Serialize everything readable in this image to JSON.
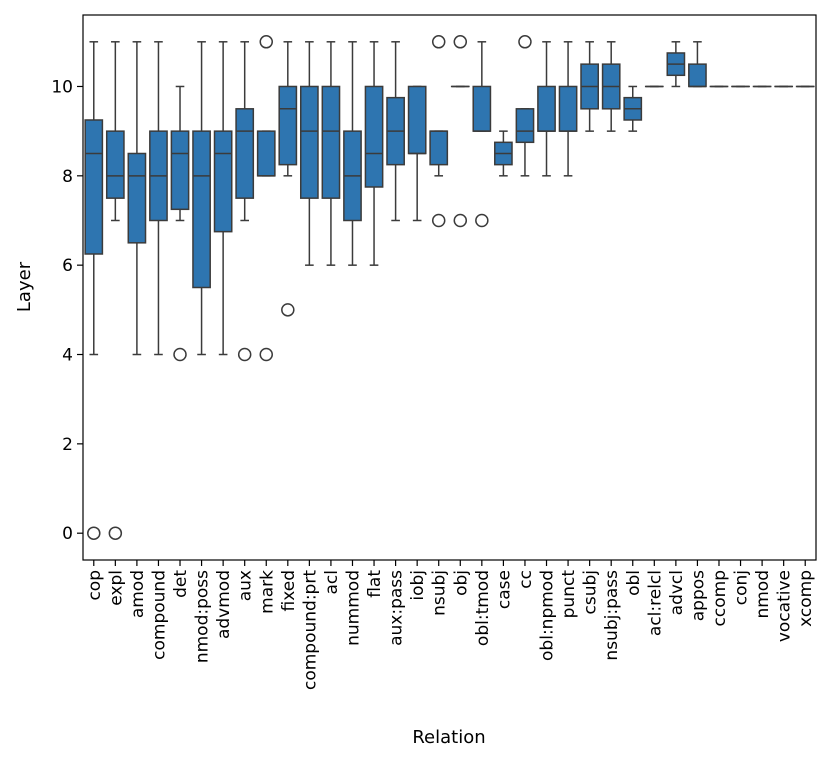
{
  "chart_data": {
    "type": "boxplot",
    "title": "",
    "xlabel": "Relation",
    "ylabel": "Layer",
    "ylim": [
      -0.6,
      11.6
    ],
    "yticks": [
      0,
      2,
      4,
      6,
      8,
      10
    ],
    "box_color": "#2e75b0",
    "line_color": "#3b3b3b",
    "categories": [
      {
        "label": "cop",
        "whisker_low": 4,
        "q1": 6.25,
        "median": 8.5,
        "q3": 9.25,
        "whisker_high": 11,
        "outliers": [
          0
        ]
      },
      {
        "label": "expl",
        "whisker_low": 7,
        "q1": 7.5,
        "median": 8,
        "q3": 9,
        "whisker_high": 11,
        "outliers": [
          0
        ]
      },
      {
        "label": "amod",
        "whisker_low": 4,
        "q1": 6.5,
        "median": 8,
        "q3": 8.5,
        "whisker_high": 11,
        "outliers": []
      },
      {
        "label": "compound",
        "whisker_low": 4,
        "q1": 7,
        "median": 8,
        "q3": 9,
        "whisker_high": 11,
        "outliers": []
      },
      {
        "label": "det",
        "whisker_low": 7,
        "q1": 7.25,
        "median": 8.5,
        "q3": 9,
        "whisker_high": 10,
        "outliers": [
          4
        ]
      },
      {
        "label": "nmod:poss",
        "whisker_low": 4,
        "q1": 5.5,
        "median": 8,
        "q3": 9,
        "whisker_high": 11,
        "outliers": []
      },
      {
        "label": "advmod",
        "whisker_low": 4,
        "q1": 6.75,
        "median": 8.5,
        "q3": 9,
        "whisker_high": 11,
        "outliers": []
      },
      {
        "label": "aux",
        "whisker_low": 7,
        "q1": 7.5,
        "median": 9,
        "q3": 9.5,
        "whisker_high": 11,
        "outliers": [
          4
        ]
      },
      {
        "label": "mark",
        "whisker_low": 8,
        "q1": 8,
        "median": 8,
        "q3": 9,
        "whisker_high": 9,
        "outliers": [
          4,
          11
        ]
      },
      {
        "label": "fixed",
        "whisker_low": 8,
        "q1": 8.25,
        "median": 9.5,
        "q3": 10,
        "whisker_high": 11,
        "outliers": [
          5
        ]
      },
      {
        "label": "compound:prt",
        "whisker_low": 6,
        "q1": 7.5,
        "median": 9,
        "q3": 10,
        "whisker_high": 11,
        "outliers": []
      },
      {
        "label": "acl",
        "whisker_low": 6,
        "q1": 7.5,
        "median": 9,
        "q3": 10,
        "whisker_high": 11,
        "outliers": []
      },
      {
        "label": "nummod",
        "whisker_low": 6,
        "q1": 7,
        "median": 8,
        "q3": 9,
        "whisker_high": 11,
        "outliers": []
      },
      {
        "label": "flat",
        "whisker_low": 6,
        "q1": 7.75,
        "median": 8.5,
        "q3": 10,
        "whisker_high": 11,
        "outliers": []
      },
      {
        "label": "aux:pass",
        "whisker_low": 7,
        "q1": 8.25,
        "median": 9,
        "q3": 9.75,
        "whisker_high": 11,
        "outliers": []
      },
      {
        "label": "iobj",
        "whisker_low": 7,
        "q1": 8.5,
        "median": 8.5,
        "q3": 10,
        "whisker_high": 10,
        "outliers": []
      },
      {
        "label": "nsubj",
        "whisker_low": 8,
        "q1": 8.25,
        "median": 9,
        "q3": 9,
        "whisker_high": 9,
        "outliers": [
          7,
          11
        ]
      },
      {
        "label": "obj",
        "whisker_low": 10,
        "q1": 10,
        "median": 10,
        "q3": 10,
        "whisker_high": 10,
        "outliers": [
          7,
          11
        ]
      },
      {
        "label": "obl:tmod",
        "whisker_low": 9,
        "q1": 9,
        "median": 9,
        "q3": 10,
        "whisker_high": 11,
        "outliers": [
          7
        ]
      },
      {
        "label": "case",
        "whisker_low": 8,
        "q1": 8.25,
        "median": 8.5,
        "q3": 8.75,
        "whisker_high": 9,
        "outliers": []
      },
      {
        "label": "cc",
        "whisker_low": 8,
        "q1": 8.75,
        "median": 9,
        "q3": 9.5,
        "whisker_high": 9.5,
        "outliers": [
          11
        ]
      },
      {
        "label": "obl:npmod",
        "whisker_low": 8,
        "q1": 9,
        "median": 9,
        "q3": 10,
        "whisker_high": 11,
        "outliers": []
      },
      {
        "label": "punct",
        "whisker_low": 8,
        "q1": 9,
        "median": 9,
        "q3": 10,
        "whisker_high": 11,
        "outliers": []
      },
      {
        "label": "csubj",
        "whisker_low": 9,
        "q1": 9.5,
        "median": 10,
        "q3": 10.5,
        "whisker_high": 11,
        "outliers": []
      },
      {
        "label": "nsubj:pass",
        "whisker_low": 9,
        "q1": 9.5,
        "median": 10,
        "q3": 10.5,
        "whisker_high": 11,
        "outliers": []
      },
      {
        "label": "obl",
        "whisker_low": 9,
        "q1": 9.25,
        "median": 9.5,
        "q3": 9.75,
        "whisker_high": 10,
        "outliers": []
      },
      {
        "label": "acl:relcl",
        "whisker_low": 10,
        "q1": 10,
        "median": 10,
        "q3": 10,
        "whisker_high": 10,
        "outliers": []
      },
      {
        "label": "advcl",
        "whisker_low": 10,
        "q1": 10.25,
        "median": 10.5,
        "q3": 10.75,
        "whisker_high": 11,
        "outliers": []
      },
      {
        "label": "appos",
        "whisker_low": 10,
        "q1": 10,
        "median": 10,
        "q3": 10.5,
        "whisker_high": 11,
        "outliers": []
      },
      {
        "label": "ccomp",
        "whisker_low": 10,
        "q1": 10,
        "median": 10,
        "q3": 10,
        "whisker_high": 10,
        "outliers": []
      },
      {
        "label": "conj",
        "whisker_low": 10,
        "q1": 10,
        "median": 10,
        "q3": 10,
        "whisker_high": 10,
        "outliers": []
      },
      {
        "label": "nmod",
        "whisker_low": 10,
        "q1": 10,
        "median": 10,
        "q3": 10,
        "whisker_high": 10,
        "outliers": []
      },
      {
        "label": "vocative",
        "whisker_low": 10,
        "q1": 10,
        "median": 10,
        "q3": 10,
        "whisker_high": 10,
        "outliers": []
      },
      {
        "label": "xcomp",
        "whisker_low": 10,
        "q1": 10,
        "median": 10,
        "q3": 10,
        "whisker_high": 10,
        "outliers": []
      }
    ]
  }
}
